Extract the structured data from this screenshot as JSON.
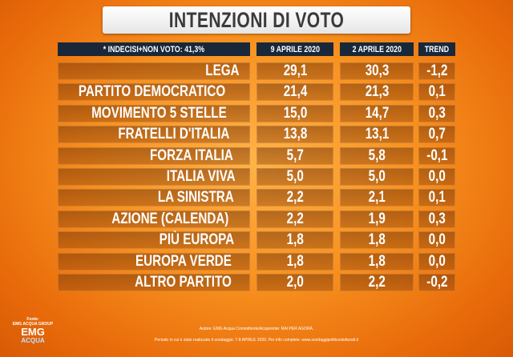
{
  "header": {
    "title": "INTENZIONI DI VOTO"
  },
  "table": {
    "columns": [
      "* INDECISI+NON VOTO: 41,3%",
      "9 APRILE 2020",
      "2 APRILE 2020",
      "TREND"
    ],
    "rows": [
      [
        "LEGA",
        "29,1",
        "30,3",
        "-1,2"
      ],
      [
        "PARTITO DEMOCRATICO",
        "21,4",
        "21,3",
        "0,1"
      ],
      [
        "MOVIMENTO 5 STELLE",
        "15,0",
        "14,7",
        "0,3"
      ],
      [
        "FRATELLI D'ITALIA",
        "13,8",
        "13,1",
        "0,7"
      ],
      [
        "FORZA ITALIA",
        "5,7",
        "5,8",
        "-0,1"
      ],
      [
        "ITALIA VIVA",
        "5,0",
        "5,0",
        "0,0"
      ],
      [
        "LA SINISTRA",
        "2,2",
        "2,1",
        "0,1"
      ],
      [
        "AZIONE (CALENDA)",
        "2,2",
        "1,9",
        "0,3"
      ],
      [
        "PIÙ EUROPA",
        "1,8",
        "1,8",
        "0,0"
      ],
      [
        "EUROPA VERDE",
        "1,8",
        "1,8",
        "0,0"
      ],
      [
        "ALTRO PARTITO",
        "2,0",
        "2,2",
        "-0,2"
      ]
    ]
  },
  "footer": {
    "source_label": "Fonte:",
    "source": "EMG ACQUA GROUP",
    "logo_top": "EMG",
    "logo_bottom": "ACQUA",
    "lines": [
      "Autore: EMG Acqua Committente/Acquirente: RAI PER AGORÀ.",
      "Periodo in cui è stato realizzato il sondaggio: 7-8 APRILE 2020. Per info complete: www.sondaggipoliticoelettorali.it"
    ]
  }
}
